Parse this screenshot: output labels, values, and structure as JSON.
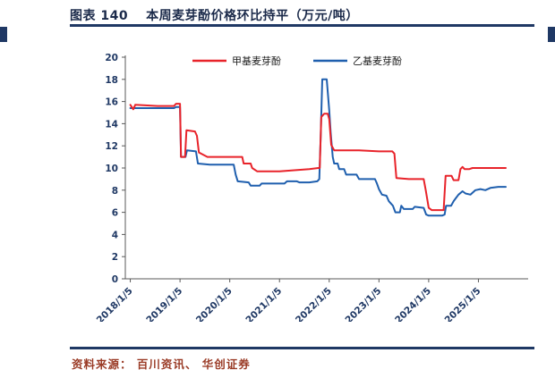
{
  "header": {
    "figure_label": "图表 140",
    "title": "本周麦芽酚价格环比持平（万元/吨）"
  },
  "footer": {
    "source": "资料来源： 百川资讯、 华创证券"
  },
  "colors": {
    "navy": "#1f3864",
    "title_text": "#1b2a4a",
    "tick_label": "#1f3864",
    "axis": "#595959",
    "source_text": "#9a3b26",
    "red_series": "#e8232a",
    "blue_series": "#1f5fae"
  },
  "chart_data": {
    "type": "line",
    "title": "本周麦芽酚价格环比持平（万元/吨）",
    "unit": "万元/吨",
    "ylim": [
      0,
      20
    ],
    "y_tick_step": 2,
    "x_range": [
      2017.9,
      2026.0
    ],
    "x_ticks": [
      "2018/1/5",
      "2019/1/5",
      "2020/1/5",
      "2021/1/5",
      "2022/1/5",
      "2023/1/5",
      "2024/1/5",
      "2025/1/5"
    ],
    "x_tick_values": [
      2018,
      2019,
      2020,
      2021,
      2022,
      2023,
      2024,
      2025
    ],
    "grid": false,
    "legend_position": "top",
    "series": [
      {
        "name": "甲基麦芽酚",
        "color": "#e8232a",
        "points": [
          [
            2018.0,
            15.7
          ],
          [
            2018.06,
            15.3
          ],
          [
            2018.1,
            15.7
          ],
          [
            2018.55,
            15.6
          ],
          [
            2018.88,
            15.6
          ],
          [
            2018.92,
            15.8
          ],
          [
            2019.0,
            15.8
          ],
          [
            2019.02,
            11.0
          ],
          [
            2019.1,
            11.0
          ],
          [
            2019.13,
            13.4
          ],
          [
            2019.3,
            13.3
          ],
          [
            2019.34,
            12.9
          ],
          [
            2019.38,
            11.4
          ],
          [
            2019.55,
            11.0
          ],
          [
            2020.0,
            11.0
          ],
          [
            2020.25,
            11.0
          ],
          [
            2020.28,
            10.4
          ],
          [
            2020.42,
            10.4
          ],
          [
            2020.45,
            10.0
          ],
          [
            2020.55,
            9.7
          ],
          [
            2021.0,
            9.7
          ],
          [
            2021.3,
            9.8
          ],
          [
            2021.6,
            9.9
          ],
          [
            2021.78,
            10.0
          ],
          [
            2021.81,
            10.0
          ],
          [
            2021.84,
            14.6
          ],
          [
            2021.9,
            14.9
          ],
          [
            2021.97,
            14.9
          ],
          [
            2022.0,
            14.4
          ],
          [
            2022.04,
            12.1
          ],
          [
            2022.1,
            11.6
          ],
          [
            2022.6,
            11.6
          ],
          [
            2023.0,
            11.5
          ],
          [
            2023.27,
            11.5
          ],
          [
            2023.31,
            11.3
          ],
          [
            2023.35,
            9.1
          ],
          [
            2023.6,
            9.0
          ],
          [
            2023.9,
            9.0
          ],
          [
            2023.94,
            8.0
          ],
          [
            2024.0,
            6.4
          ],
          [
            2024.06,
            6.2
          ],
          [
            2024.3,
            6.2
          ],
          [
            2024.34,
            9.3
          ],
          [
            2024.46,
            9.3
          ],
          [
            2024.5,
            8.9
          ],
          [
            2024.6,
            8.9
          ],
          [
            2024.64,
            9.9
          ],
          [
            2024.68,
            10.1
          ],
          [
            2024.72,
            9.9
          ],
          [
            2024.82,
            9.9
          ],
          [
            2024.88,
            10.0
          ],
          [
            2025.1,
            10.0
          ],
          [
            2025.55,
            10.0
          ]
        ]
      },
      {
        "name": "乙基麦芽酚",
        "color": "#1f5fae",
        "points": [
          [
            2018.0,
            15.4
          ],
          [
            2018.88,
            15.4
          ],
          [
            2018.92,
            15.5
          ],
          [
            2019.0,
            15.5
          ],
          [
            2019.02,
            11.0
          ],
          [
            2019.11,
            11.0
          ],
          [
            2019.14,
            11.6
          ],
          [
            2019.32,
            11.5
          ],
          [
            2019.36,
            10.4
          ],
          [
            2019.6,
            10.3
          ],
          [
            2020.08,
            10.3
          ],
          [
            2020.12,
            9.4
          ],
          [
            2020.16,
            8.8
          ],
          [
            2020.38,
            8.7
          ],
          [
            2020.42,
            8.4
          ],
          [
            2020.6,
            8.4
          ],
          [
            2020.64,
            8.6
          ],
          [
            2021.1,
            8.6
          ],
          [
            2021.15,
            8.8
          ],
          [
            2021.35,
            8.8
          ],
          [
            2021.4,
            8.7
          ],
          [
            2021.6,
            8.7
          ],
          [
            2021.76,
            8.8
          ],
          [
            2021.8,
            9.0
          ],
          [
            2021.83,
            13.0
          ],
          [
            2021.86,
            18.0
          ],
          [
            2021.95,
            18.0
          ],
          [
            2022.0,
            15.2
          ],
          [
            2022.03,
            13.2
          ],
          [
            2022.07,
            11.0
          ],
          [
            2022.1,
            10.4
          ],
          [
            2022.17,
            10.4
          ],
          [
            2022.2,
            9.9
          ],
          [
            2022.3,
            9.9
          ],
          [
            2022.34,
            9.4
          ],
          [
            2022.55,
            9.4
          ],
          [
            2022.6,
            9.0
          ],
          [
            2022.92,
            9.0
          ],
          [
            2022.96,
            8.6
          ],
          [
            2023.0,
            8.1
          ],
          [
            2023.06,
            7.6
          ],
          [
            2023.15,
            7.5
          ],
          [
            2023.2,
            7.0
          ],
          [
            2023.28,
            6.6
          ],
          [
            2023.33,
            6.0
          ],
          [
            2023.42,
            6.0
          ],
          [
            2023.45,
            6.6
          ],
          [
            2023.5,
            6.3
          ],
          [
            2023.68,
            6.3
          ],
          [
            2023.72,
            6.5
          ],
          [
            2023.9,
            6.4
          ],
          [
            2023.95,
            5.8
          ],
          [
            2024.0,
            5.7
          ],
          [
            2024.27,
            5.7
          ],
          [
            2024.32,
            5.8
          ],
          [
            2024.35,
            6.6
          ],
          [
            2024.45,
            6.6
          ],
          [
            2024.5,
            7.0
          ],
          [
            2024.55,
            7.3
          ],
          [
            2024.6,
            7.6
          ],
          [
            2024.68,
            7.9
          ],
          [
            2024.74,
            7.7
          ],
          [
            2024.84,
            7.6
          ],
          [
            2024.94,
            8.0
          ],
          [
            2025.04,
            8.1
          ],
          [
            2025.14,
            8.0
          ],
          [
            2025.24,
            8.2
          ],
          [
            2025.4,
            8.3
          ],
          [
            2025.55,
            8.3
          ]
        ]
      }
    ]
  }
}
